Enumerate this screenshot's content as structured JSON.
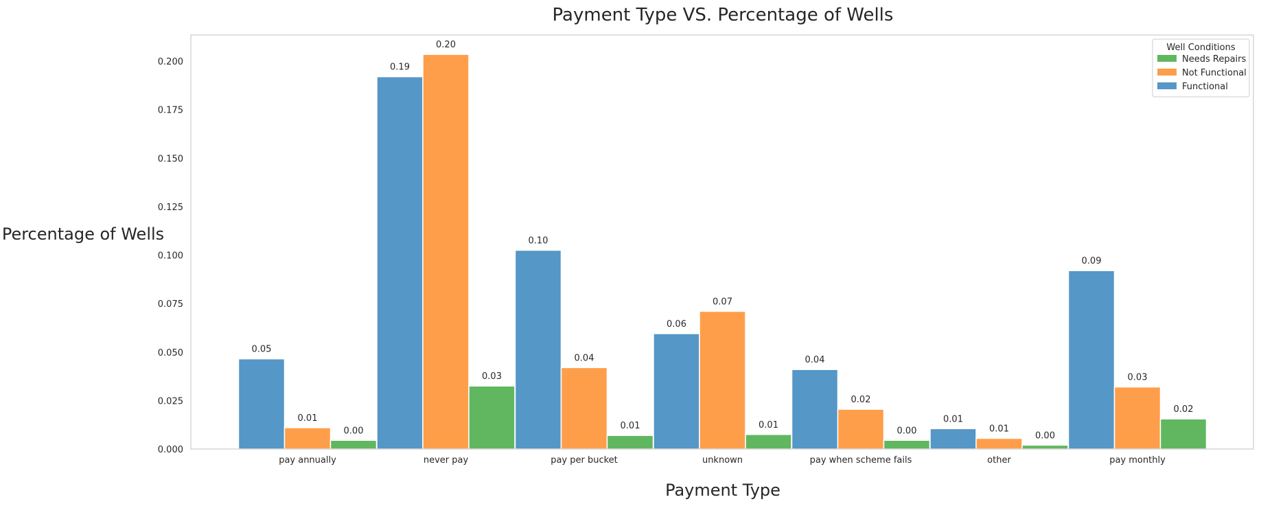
{
  "chart_data": {
    "type": "bar",
    "title": "Payment Type VS. Percentage of Wells",
    "xlabel": "Payment Type",
    "ylabel": "Percentage of Wells",
    "categories": [
      "pay annually",
      "never pay",
      "pay per bucket",
      "unknown",
      "pay when scheme fails",
      "other",
      "pay monthly"
    ],
    "series": [
      {
        "name": "Functional",
        "color": "#5597c6",
        "values": [
          0.0465,
          0.192,
          0.1025,
          0.0595,
          0.041,
          0.0105,
          0.092
        ],
        "labels": [
          "0.05",
          "0.19",
          "0.10",
          "0.06",
          "0.04",
          "0.01",
          "0.09"
        ]
      },
      {
        "name": "Not Functional",
        "color": "#ff9e4a",
        "values": [
          0.011,
          0.2035,
          0.042,
          0.071,
          0.0205,
          0.0055,
          0.032
        ],
        "labels": [
          "0.01",
          "0.20",
          "0.04",
          "0.07",
          "0.02",
          "0.01",
          "0.03"
        ]
      },
      {
        "name": "Needs Repairs",
        "color": "#60b760",
        "values": [
          0.0045,
          0.0325,
          0.007,
          0.0075,
          0.0045,
          0.002,
          0.0155
        ],
        "labels": [
          "0.00",
          "0.03",
          "0.01",
          "0.01",
          "0.00",
          "0.00",
          "0.02"
        ]
      }
    ],
    "ylim": [
      0,
      0.2135
    ],
    "yticks": [
      "0.000",
      "0.025",
      "0.050",
      "0.075",
      "0.100",
      "0.125",
      "0.150",
      "0.175",
      "0.200"
    ],
    "grid": false,
    "legend": {
      "title": "Well Conditions",
      "placement": "top-right",
      "order": [
        "Needs Repairs",
        "Not Functional",
        "Functional"
      ]
    }
  }
}
